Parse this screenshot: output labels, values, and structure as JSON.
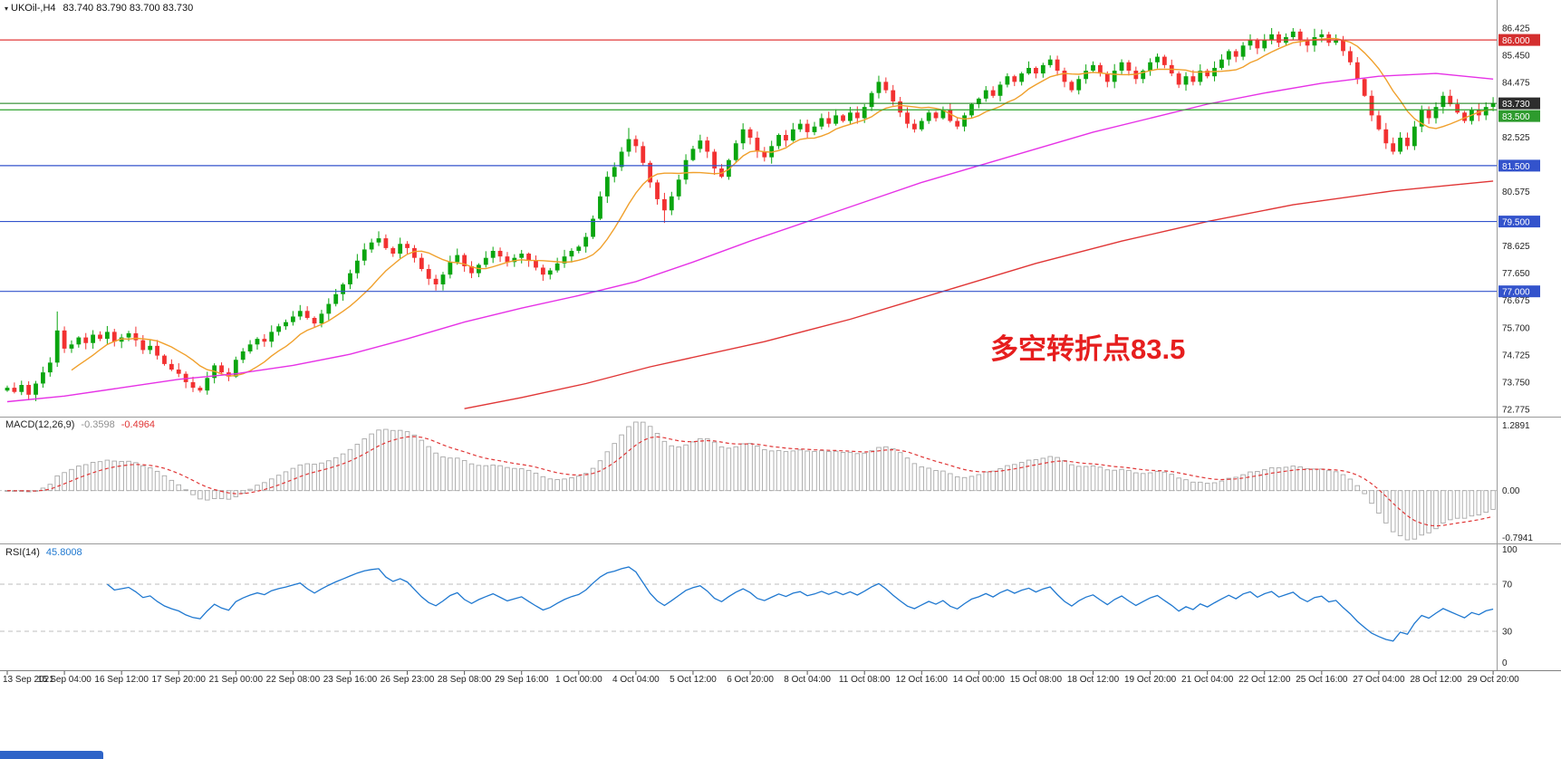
{
  "header": {
    "symbol_title": "UKOil-,H4",
    "quote_line": "83.740 83.790 83.700 83.730"
  },
  "icons": {
    "symbol_marker_icon": "▾"
  },
  "chart_data": {
    "type": "candlestick",
    "symbol": "UKOil-",
    "timeframe": "H4",
    "quote": {
      "open": "83.740",
      "high": "83.790",
      "low": "83.700",
      "close": "83.730"
    },
    "price_axis": {
      "range": [
        72.775,
        86.425
      ],
      "ticks": [
        "86.425",
        "85.450",
        "84.475",
        "82.525",
        "80.575",
        "78.625",
        "77.650",
        "76.675",
        "75.700",
        "74.725",
        "73.750",
        "72.775"
      ]
    },
    "time_axis": [
      "13 Sep 2021",
      "15 Sep 04:00",
      "16 Sep 12:00",
      "17 Sep 20:00",
      "21 Sep 00:00",
      "22 Sep 08:00",
      "23 Sep 16:00",
      "26 Sep 23:00",
      "28 Sep 08:00",
      "29 Sep 16:00",
      "1 Oct 00:00",
      "4 Oct 04:00",
      "5 Oct 12:00",
      "6 Oct 20:00",
      "8 Oct 04:00",
      "11 Oct 08:00",
      "12 Oct 16:00",
      "14 Oct 00:00",
      "15 Oct 08:00",
      "18 Oct 12:00",
      "19 Oct 20:00",
      "21 Oct 04:00",
      "22 Oct 12:00",
      "25 Oct 16:00",
      "27 Oct 04:00",
      "28 Oct 12:00",
      "29 Oct 20:00"
    ],
    "hlines": [
      {
        "price": 86.0,
        "label": "86.000",
        "color": "#e23a3a",
        "label_bg": "#d42f2f"
      },
      {
        "price": 83.73,
        "label": "83.730",
        "color": "#0e7c0e",
        "label_bg": "#2d2d2d",
        "is_current": true
      },
      {
        "price": 83.5,
        "label": "83.500",
        "color": "#2ca32c",
        "label_bg": "#2e9b2e"
      },
      {
        "price": 81.5,
        "label": "81.500",
        "color": "#3353cc",
        "label_bg": "#3353cc"
      },
      {
        "price": 79.5,
        "label": "79.500",
        "color": "#3353cc",
        "label_bg": "#3353cc"
      },
      {
        "price": 77.0,
        "label": "77.000",
        "color": "#3353cc",
        "label_bg": "#3353cc"
      }
    ],
    "candle_colors": {
      "up": "#0aa50f",
      "down": "#f23131"
    },
    "candles": {
      "first_open": 73.45,
      "closes": [
        73.55,
        73.4,
        73.65,
        73.3,
        73.7,
        74.1,
        74.45,
        75.6,
        74.95,
        75.1,
        75.35,
        75.15,
        75.45,
        75.3,
        75.55,
        75.2,
        75.35,
        75.5,
        75.25,
        74.9,
        75.05,
        74.7,
        74.4,
        74.2,
        74.05,
        73.75,
        73.55,
        73.45,
        73.9,
        74.35,
        74.1,
        73.95,
        74.55,
        74.85,
        75.1,
        75.3,
        75.2,
        75.55,
        75.75,
        75.9,
        76.1,
        76.3,
        76.05,
        75.85,
        76.2,
        76.55,
        76.9,
        77.25,
        77.65,
        78.1,
        78.5,
        78.75,
        78.9,
        78.55,
        78.35,
        78.7,
        78.55,
        78.2,
        77.8,
        77.45,
        77.25,
        77.6,
        78.05,
        78.3,
        77.9,
        77.65,
        77.95,
        78.2,
        78.45,
        78.25,
        78.05,
        78.2,
        78.35,
        78.1,
        77.85,
        77.6,
        77.75,
        78.0,
        78.25,
        78.45,
        78.6,
        78.95,
        79.6,
        80.4,
        81.1,
        81.45,
        82.0,
        82.45,
        82.2,
        81.6,
        80.9,
        80.3,
        79.9,
        80.4,
        81.0,
        81.7,
        82.1,
        82.4,
        82.0,
        81.4,
        81.1,
        81.7,
        82.3,
        82.8,
        82.5,
        82.0,
        81.8,
        82.2,
        82.6,
        82.4,
        82.8,
        83.0,
        82.7,
        82.9,
        83.2,
        83.0,
        83.3,
        83.1,
        83.4,
        83.2,
        83.6,
        84.1,
        84.5,
        84.2,
        83.8,
        83.4,
        83.0,
        82.8,
        83.1,
        83.4,
        83.2,
        83.5,
        83.1,
        82.9,
        83.3,
        83.7,
        83.9,
        84.2,
        84.0,
        84.4,
        84.7,
        84.5,
        84.8,
        85.0,
        84.8,
        85.1,
        85.3,
        84.9,
        84.5,
        84.2,
        84.6,
        84.9,
        85.1,
        84.8,
        84.5,
        84.9,
        85.2,
        84.9,
        84.6,
        84.9,
        85.2,
        85.4,
        85.1,
        84.8,
        84.4,
        84.7,
        84.5,
        84.9,
        84.7,
        85.0,
        85.3,
        85.6,
        85.4,
        85.8,
        86.0,
        85.7,
        86.0,
        86.2,
        85.9,
        86.1,
        86.3,
        86.0,
        85.8,
        86.1,
        86.2,
        85.9,
        86.0,
        85.6,
        85.2,
        84.6,
        84.0,
        83.3,
        82.8,
        82.3,
        82.0,
        82.5,
        82.2,
        82.9,
        83.5,
        83.2,
        83.6,
        84.0,
        83.7,
        83.4,
        83.1,
        83.5,
        83.3,
        83.6,
        83.73
      ],
      "wick_overrides": {
        "3": {
          "low": 73.1
        },
        "7": {
          "high": 76.28
        },
        "27": {
          "low": 73.38
        },
        "52": {
          "high": 79.15
        },
        "87": {
          "high": 82.85
        },
        "92": {
          "low": 79.45
        },
        "122": {
          "high": 84.72
        },
        "180": {
          "high": 86.425
        },
        "183": {
          "high": 86.4
        },
        "194": {
          "low": 81.9
        }
      }
    },
    "moving_averages": [
      {
        "name": "MA fast",
        "color": "#f0a02c",
        "method": "sma",
        "period": 10
      },
      {
        "name": "MA mid",
        "color": "#e632e6",
        "points": [
          [
            0,
            73.05
          ],
          [
            8,
            73.25
          ],
          [
            16,
            73.55
          ],
          [
            24,
            73.85
          ],
          [
            32,
            74.05
          ],
          [
            40,
            74.35
          ],
          [
            48,
            74.75
          ],
          [
            56,
            75.3
          ],
          [
            64,
            75.9
          ],
          [
            72,
            76.4
          ],
          [
            80,
            76.85
          ],
          [
            88,
            77.35
          ],
          [
            96,
            78.05
          ],
          [
            104,
            78.8
          ],
          [
            112,
            79.5
          ],
          [
            120,
            80.2
          ],
          [
            128,
            80.9
          ],
          [
            136,
            81.5
          ],
          [
            144,
            82.1
          ],
          [
            152,
            82.7
          ],
          [
            160,
            83.2
          ],
          [
            168,
            83.7
          ],
          [
            176,
            84.1
          ],
          [
            184,
            84.45
          ],
          [
            192,
            84.7
          ],
          [
            200,
            84.8
          ],
          [
            208,
            84.6
          ]
        ]
      },
      {
        "name": "MA slow",
        "color": "#e03636",
        "points": [
          [
            64,
            72.8
          ],
          [
            72,
            73.2
          ],
          [
            81,
            73.7
          ],
          [
            90,
            74.3
          ],
          [
            106,
            75.2
          ],
          [
            118,
            76.0
          ],
          [
            131,
            77.0
          ],
          [
            144,
            78.0
          ],
          [
            156,
            78.8
          ],
          [
            168,
            79.5
          ],
          [
            180,
            80.1
          ],
          [
            194,
            80.6
          ],
          [
            208,
            80.95
          ]
        ]
      }
    ],
    "annotation": {
      "text": "多空转折点83.5",
      "color": "#e61e1e"
    },
    "indicators": [
      {
        "name": "MACD",
        "label": "MACD(12,26,9)",
        "value_main": "-0.3598",
        "value_signal": "-0.4964",
        "params": [
          12,
          26,
          9
        ],
        "axis_labels": [
          "1.2891",
          "0.00",
          "-0.7941"
        ],
        "histogram_color": "#a8a8a8",
        "signal_color": "#e03636"
      },
      {
        "name": "RSI",
        "label": "RSI(14)",
        "value": "45.8008",
        "period": 14,
        "levels": [
          70,
          30
        ],
        "axis_labels": [
          "100",
          "70",
          "30",
          "0"
        ],
        "line_color": "#1f78d0"
      }
    ]
  },
  "taskbar": {
    "note": ""
  }
}
